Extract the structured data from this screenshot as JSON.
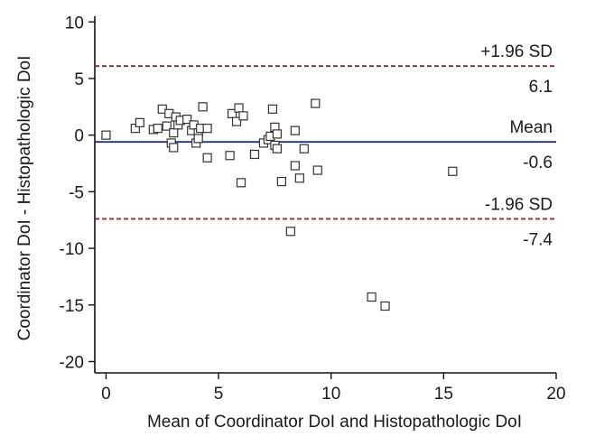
{
  "chart_data": {
    "type": "scatter",
    "title": "",
    "xlabel": "Mean of Coordinator DoI and Histopathologic DoI",
    "ylabel": "Coordinator DoI - Histopathologic DoI",
    "xlim": [
      -0.5,
      20
    ],
    "ylim": [
      -21,
      10.5
    ],
    "x_ticks": [
      0,
      5,
      10,
      15,
      20
    ],
    "y_ticks": [
      10,
      5,
      0,
      -5,
      -10,
      -15,
      -20
    ],
    "grid": false,
    "legend": "none",
    "marker": "open-square",
    "reference_lines": [
      {
        "name": "upper-limit",
        "label": "+1.96 SD",
        "value": 6.1,
        "value_label": "6.1",
        "color": "#a01e1e",
        "style": "dashed"
      },
      {
        "name": "mean",
        "label": "Mean",
        "value": -0.6,
        "value_label": "-0.6",
        "color": "#1f2f8f",
        "style": "solid"
      },
      {
        "name": "lower-limit",
        "label": "-1.96 SD",
        "value": -7.4,
        "value_label": "-7.4",
        "color": "#a01e1e",
        "style": "dashed"
      }
    ],
    "points": [
      {
        "x": 0.0,
        "y": 0.0
      },
      {
        "x": 1.3,
        "y": 0.6
      },
      {
        "x": 1.5,
        "y": 1.1
      },
      {
        "x": 2.1,
        "y": 0.5
      },
      {
        "x": 2.3,
        "y": 0.6
      },
      {
        "x": 2.5,
        "y": 2.3
      },
      {
        "x": 2.7,
        "y": 0.8
      },
      {
        "x": 2.8,
        "y": 1.9
      },
      {
        "x": 2.9,
        "y": -0.7
      },
      {
        "x": 3.0,
        "y": 0.2
      },
      {
        "x": 3.0,
        "y": -1.1
      },
      {
        "x": 3.1,
        "y": 1.6
      },
      {
        "x": 3.2,
        "y": 0.9
      },
      {
        "x": 3.3,
        "y": 1.3
      },
      {
        "x": 3.6,
        "y": 1.4
      },
      {
        "x": 3.8,
        "y": 0.4
      },
      {
        "x": 3.9,
        "y": 0.9
      },
      {
        "x": 4.0,
        "y": -0.7
      },
      {
        "x": 4.1,
        "y": 0.2
      },
      {
        "x": 4.1,
        "y": -0.3
      },
      {
        "x": 4.2,
        "y": 0.6
      },
      {
        "x": 4.3,
        "y": 2.5
      },
      {
        "x": 4.5,
        "y": 0.6
      },
      {
        "x": 4.5,
        "y": -2.0
      },
      {
        "x": 5.5,
        "y": -1.8
      },
      {
        "x": 5.6,
        "y": 1.9
      },
      {
        "x": 5.8,
        "y": 1.2
      },
      {
        "x": 5.9,
        "y": 2.4
      },
      {
        "x": 6.0,
        "y": -4.2
      },
      {
        "x": 6.1,
        "y": 1.7
      },
      {
        "x": 6.6,
        "y": -1.7
      },
      {
        "x": 7.0,
        "y": -0.7
      },
      {
        "x": 7.2,
        "y": -0.4
      },
      {
        "x": 7.3,
        "y": -0.1
      },
      {
        "x": 7.4,
        "y": 2.3
      },
      {
        "x": 7.5,
        "y": 0.7
      },
      {
        "x": 7.5,
        "y": -0.9
      },
      {
        "x": 7.6,
        "y": -1.2
      },
      {
        "x": 7.6,
        "y": 0.1
      },
      {
        "x": 7.8,
        "y": -4.1
      },
      {
        "x": 8.2,
        "y": -8.5
      },
      {
        "x": 8.4,
        "y": 0.4
      },
      {
        "x": 8.4,
        "y": -2.7
      },
      {
        "x": 8.6,
        "y": -3.8
      },
      {
        "x": 8.8,
        "y": -1.2
      },
      {
        "x": 9.3,
        "y": 2.8
      },
      {
        "x": 9.4,
        "y": -3.1
      },
      {
        "x": 11.8,
        "y": -14.3
      },
      {
        "x": 12.4,
        "y": -15.1
      },
      {
        "x": 15.4,
        "y": -3.2
      }
    ]
  }
}
